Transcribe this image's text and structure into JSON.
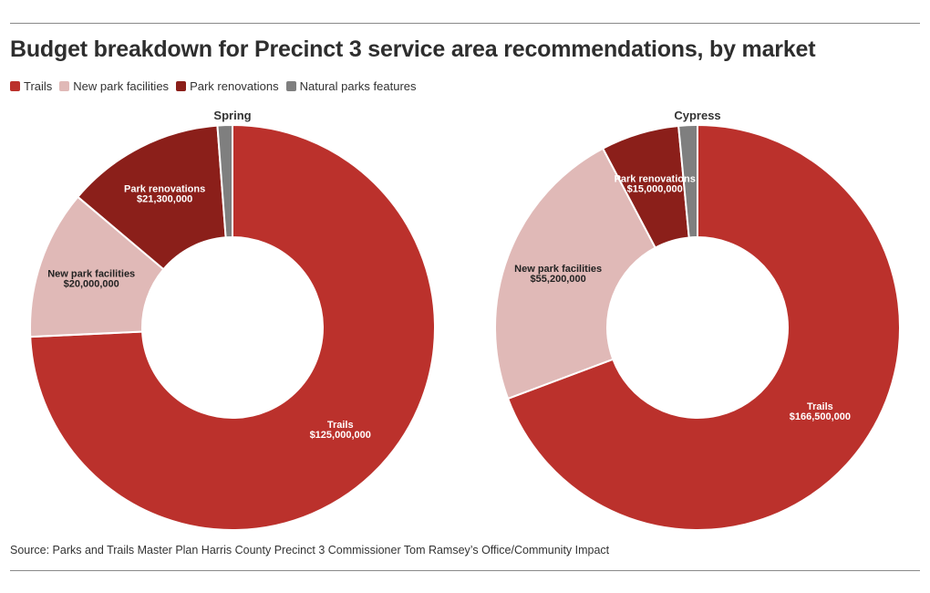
{
  "title": "Budget breakdown for Precinct 3 service area recommendations, by market",
  "legend": [
    {
      "label": "Trails",
      "color": "#bb312c"
    },
    {
      "label": "New park facilities",
      "color": "#e0b9b7"
    },
    {
      "label": "Park renovations",
      "color": "#8b1f1a"
    },
    {
      "label": "Natural parks features",
      "color": "#7f7f7f"
    }
  ],
  "source": "Source: Parks and Trails Master Plan Harris County Precinct 3 Commissioner Tom Ramsey’s Office/Community Impact",
  "chart_data": [
    {
      "type": "pie",
      "variant": "donut",
      "title": "Spring",
      "categories": [
        "Trails",
        "New park facilities",
        "Park renovations",
        "Natural parks features"
      ],
      "values": [
        125000000,
        20000000,
        21300000,
        2000000
      ],
      "value_labels": [
        "$125,000,000",
        "$20,000,000",
        "$21,300,000",
        ""
      ],
      "colors": [
        "#bb312c",
        "#e0b9b7",
        "#8b1f1a",
        "#7f7f7f"
      ]
    },
    {
      "type": "pie",
      "variant": "donut",
      "title": "Cypress",
      "categories": [
        "Trails",
        "New park facilities",
        "Park renovations",
        "Natural parks features"
      ],
      "values": [
        166500000,
        55200000,
        15000000,
        3600000
      ],
      "value_labels": [
        "$166,500,000",
        "$55,200,000",
        "$15,000,000",
        ""
      ],
      "colors": [
        "#bb312c",
        "#e0b9b7",
        "#8b1f1a",
        "#7f7f7f"
      ]
    }
  ]
}
